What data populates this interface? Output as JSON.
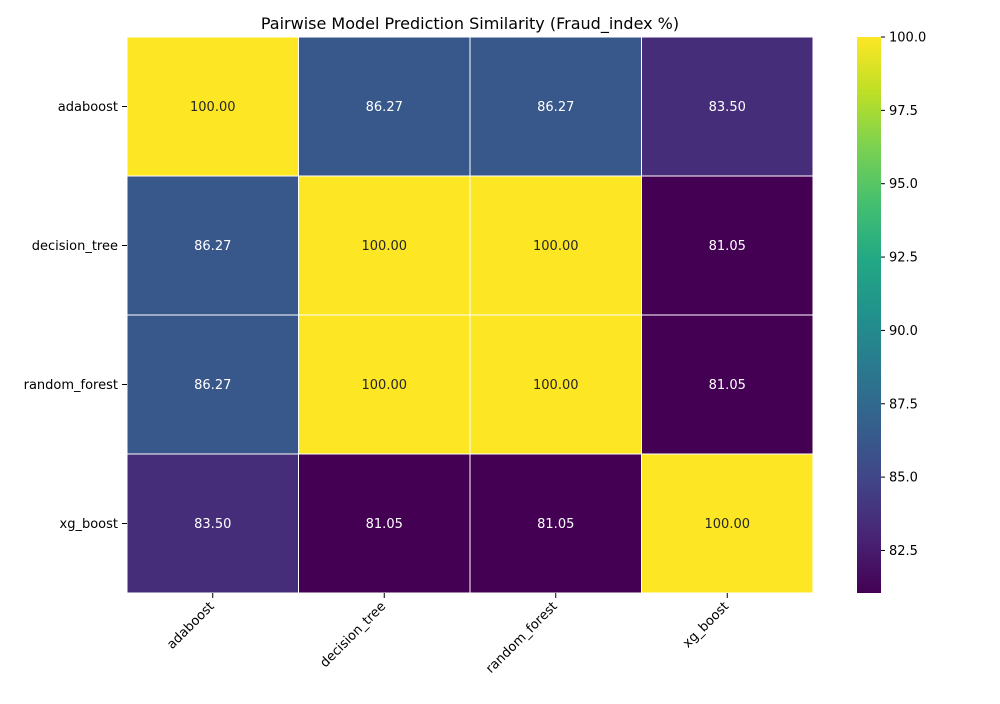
{
  "chart_data": {
    "type": "heatmap",
    "title": "Pairwise Model Prediction Similarity (Fraud_index %)",
    "row_labels": [
      "adaboost",
      "decision_tree",
      "random_forest",
      "xg_boost"
    ],
    "col_labels": [
      "adaboost",
      "decision_tree",
      "random_forest",
      "xg_boost"
    ],
    "values": [
      [
        100.0,
        86.27,
        86.27,
        83.5
      ],
      [
        86.27,
        100.0,
        100.0,
        81.05
      ],
      [
        86.27,
        100.0,
        100.0,
        81.05
      ],
      [
        83.5,
        81.05,
        81.05,
        100.0
      ]
    ],
    "annotation_format": "2 decimals",
    "colormap": "viridis",
    "colorbar": {
      "range": [
        81.05,
        100.0
      ],
      "ticks": [
        82.5,
        85.0,
        87.5,
        90.0,
        92.5,
        95.0,
        97.5,
        100.0
      ],
      "tick_labels": [
        "82.5",
        "85.0",
        "87.5",
        "90.0",
        "92.5",
        "95.0",
        "97.5",
        "100.0"
      ]
    },
    "cell_border_color": "#ffffff",
    "x_tick_rotation_deg": 45
  }
}
